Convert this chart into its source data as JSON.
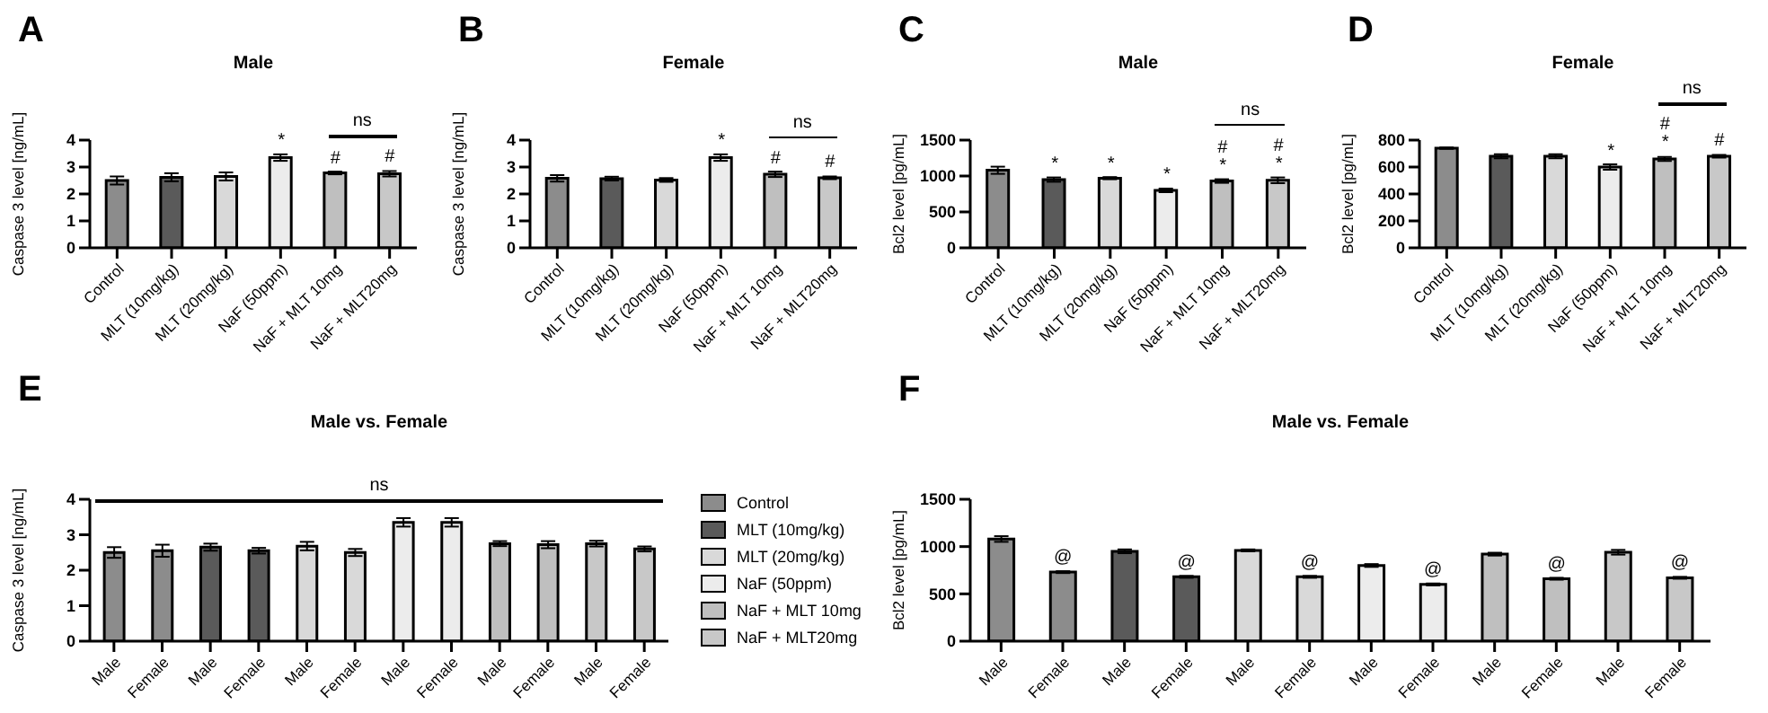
{
  "chart_data": [
    {
      "type": "bar",
      "title": "Male",
      "ylabel": "Caspase 3 level [ng/mL]",
      "categories": [
        "Control",
        "MLT (10mg/kg)",
        "MLT (20mg/kg)",
        "NaF (50ppm)",
        "NaF + MLT 10mg",
        "NaF + MLT20mg"
      ],
      "values": [
        2.5,
        2.62,
        2.65,
        3.35,
        2.78,
        2.75
      ],
      "errors": [
        0.15,
        0.15,
        0.15,
        0.12,
        0.05,
        0.1
      ],
      "colors": [
        "#8c8c8c",
        "#5a5a5a",
        "#d9d9d9",
        "#ececec",
        "#bfbfbf",
        "#c8c8c8"
      ],
      "value_labels": [
        null,
        null,
        null,
        "*",
        "#",
        "#"
      ],
      "ylim": [
        0,
        4
      ],
      "yticks": [
        0,
        1,
        2,
        3,
        4
      ],
      "annotations": [
        "A",
        "ns"
      ]
    },
    {
      "type": "bar",
      "title": "Female",
      "ylabel": "Caspase 3 level [ng/mL]",
      "categories": [
        "Control",
        "MLT (10mg/kg)",
        "MLT (20mg/kg)",
        "NaF (50ppm)",
        "NaF + MLT 10mg",
        "NaF + MLT20mg"
      ],
      "values": [
        2.58,
        2.57,
        2.52,
        3.35,
        2.73,
        2.6
      ],
      "errors": [
        0.12,
        0.07,
        0.07,
        0.12,
        0.1,
        0.05
      ],
      "colors": [
        "#8c8c8c",
        "#5a5a5a",
        "#d9d9d9",
        "#ececec",
        "#bfbfbf",
        "#c8c8c8"
      ],
      "value_labels": [
        null,
        null,
        null,
        "*",
        "#",
        "#"
      ],
      "ylim": [
        0,
        4
      ],
      "yticks": [
        0,
        1,
        2,
        3,
        4
      ],
      "annotations": [
        "B",
        "ns"
      ]
    },
    {
      "type": "bar",
      "title": "Male",
      "ylabel": "Bcl2 level [pg/mL]",
      "categories": [
        "Control",
        "MLT (10mg/kg)",
        "MLT (20mg/kg)",
        "NaF (50ppm)",
        "NaF + MLT 10mg",
        "NaF + MLT20mg"
      ],
      "values": [
        1080,
        950,
        970,
        800,
        930,
        940
      ],
      "errors": [
        50,
        30,
        15,
        25,
        25,
        40
      ],
      "colors": [
        "#8c8c8c",
        "#5a5a5a",
        "#d9d9d9",
        "#ececec",
        "#bfbfbf",
        "#c8c8c8"
      ],
      "value_labels": [
        null,
        "*",
        "*",
        "*",
        "#\n*",
        "#\n*"
      ],
      "ylim": [
        0,
        1500
      ],
      "yticks": [
        0,
        500,
        1000,
        1500
      ],
      "annotations": [
        "C",
        "ns"
      ]
    },
    {
      "type": "bar",
      "title": "Female",
      "ylabel": "Bcl2 level [pg/mL]",
      "categories": [
        "Control",
        "MLT (10mg/kg)",
        "MLT (20mg/kg)",
        "NaF (50ppm)",
        "NaF + MLT 10mg",
        "NaF + MLT20mg"
      ],
      "values": [
        740,
        680,
        680,
        600,
        660,
        680
      ],
      "errors": [
        5,
        15,
        15,
        20,
        15,
        10
      ],
      "colors": [
        "#8c8c8c",
        "#5a5a5a",
        "#d9d9d9",
        "#ececec",
        "#bfbfbf",
        "#c8c8c8"
      ],
      "value_labels": [
        null,
        null,
        null,
        "*",
        "#\n*",
        "#"
      ],
      "ylim": [
        0,
        800
      ],
      "yticks": [
        0,
        200,
        400,
        600,
        800
      ],
      "annotations": [
        "D",
        "ns"
      ]
    },
    {
      "type": "bar",
      "title": "Male vs. Female",
      "ylabel": "Caspase 3 level [ng/mL]",
      "categories": [
        "Male",
        "Female",
        "Male",
        "Female",
        "Male",
        "Female",
        "Male",
        "Female",
        "Male",
        "Female",
        "Male",
        "Female"
      ],
      "stacked": true,
      "legend": "right",
      "ylim": [
        0,
        4
      ],
      "yticks": [
        0,
        1,
        2,
        3,
        4
      ],
      "annotations": [
        "E",
        "ns"
      ],
      "series": [
        {
          "name": "Control",
          "color": "#8c8c8c",
          "values": [
            2.5,
            2.55,
            null,
            null,
            null,
            null,
            null,
            null,
            null,
            null,
            null,
            null
          ],
          "errors": [
            0.15,
            0.17,
            null,
            null,
            null,
            null,
            null,
            null,
            null,
            null,
            null,
            null
          ]
        },
        {
          "name": "MLT (10mg/kg)",
          "color": "#5a5a5a",
          "values": [
            null,
            null,
            2.65,
            2.55,
            null,
            null,
            null,
            null,
            null,
            null,
            null,
            null
          ],
          "errors": [
            null,
            null,
            0.1,
            0.08,
            null,
            null,
            null,
            null,
            null,
            null,
            null,
            null
          ]
        },
        {
          "name": "MLT (20mg/kg)",
          "color": "#d9d9d9",
          "values": [
            null,
            null,
            null,
            null,
            2.68,
            2.5,
            null,
            null,
            null,
            null,
            null,
            null
          ],
          "errors": [
            null,
            null,
            null,
            null,
            0.12,
            0.1,
            null,
            null,
            null,
            null,
            null,
            null
          ]
        },
        {
          "name": "NaF (50ppm)",
          "color": "#ececec",
          "values": [
            null,
            null,
            null,
            null,
            null,
            null,
            3.35,
            3.35,
            null,
            null,
            null,
            null
          ],
          "errors": [
            null,
            null,
            null,
            null,
            null,
            null,
            0.12,
            0.12,
            null,
            null,
            null,
            null
          ]
        },
        {
          "name": "NaF + MLT 10mg",
          "color": "#bfbfbf",
          "values": [
            null,
            null,
            null,
            null,
            null,
            null,
            null,
            null,
            2.75,
            2.72,
            null,
            null
          ],
          "errors": [
            null,
            null,
            null,
            null,
            null,
            null,
            null,
            null,
            0.07,
            0.1,
            null,
            null
          ]
        },
        {
          "name": "NaF + MLT20mg",
          "color": "#c8c8c8",
          "values": [
            null,
            null,
            null,
            null,
            null,
            null,
            null,
            null,
            null,
            null,
            2.75,
            2.6
          ],
          "errors": [
            null,
            null,
            null,
            null,
            null,
            null,
            null,
            null,
            null,
            null,
            0.08,
            0.07
          ]
        }
      ]
    },
    {
      "type": "bar",
      "title": "Male vs. Female",
      "ylabel": "Bcl2 level [pg/mL]",
      "categories": [
        "Male",
        "Female",
        "Male",
        "Female",
        "Male",
        "Female",
        "Male",
        "Female",
        "Male",
        "Female",
        "Male",
        "Female"
      ],
      "stacked": true,
      "ylim": [
        0,
        1500
      ],
      "yticks": [
        0,
        500,
        1000,
        1500
      ],
      "annotations": [
        "F"
      ],
      "series": [
        {
          "color": "#8c8c8c",
          "values": [
            1080,
            730,
            null,
            null,
            null,
            null,
            null,
            null,
            null,
            null,
            null,
            null
          ],
          "errors": [
            30,
            10,
            null,
            null,
            null,
            null,
            null,
            null,
            null,
            null,
            null,
            null
          ],
          "value_labels": [
            null,
            "@",
            null,
            null,
            null,
            null,
            null,
            null,
            null,
            null,
            null,
            null
          ]
        },
        {
          "color": "#5a5a5a",
          "values": [
            null,
            null,
            950,
            680,
            null,
            null,
            null,
            null,
            null,
            null,
            null,
            null
          ],
          "errors": [
            null,
            null,
            20,
            10,
            null,
            null,
            null,
            null,
            null,
            null,
            null,
            null
          ],
          "value_labels": [
            null,
            null,
            null,
            "@",
            null,
            null,
            null,
            null,
            null,
            null,
            null,
            null
          ]
        },
        {
          "color": "#d9d9d9",
          "values": [
            null,
            null,
            null,
            null,
            960,
            680,
            null,
            null,
            null,
            null,
            null,
            null
          ],
          "errors": [
            null,
            null,
            null,
            null,
            10,
            10,
            null,
            null,
            null,
            null,
            null,
            null
          ],
          "value_labels": [
            null,
            null,
            null,
            null,
            null,
            "@",
            null,
            null,
            null,
            null,
            null,
            null
          ]
        },
        {
          "color": "#ececec",
          "values": [
            null,
            null,
            null,
            null,
            null,
            null,
            800,
            600,
            null,
            null,
            null,
            null
          ],
          "errors": [
            null,
            null,
            null,
            null,
            null,
            null,
            15,
            10,
            null,
            null,
            null,
            null
          ],
          "value_labels": [
            null,
            null,
            null,
            null,
            null,
            null,
            null,
            "@",
            null,
            null,
            null,
            null
          ]
        },
        {
          "color": "#bfbfbf",
          "values": [
            null,
            null,
            null,
            null,
            null,
            null,
            null,
            null,
            920,
            660,
            null,
            null
          ],
          "errors": [
            null,
            null,
            null,
            null,
            null,
            null,
            null,
            null,
            15,
            10,
            null,
            null
          ],
          "value_labels": [
            null,
            null,
            null,
            null,
            null,
            null,
            null,
            null,
            null,
            "@",
            null,
            null
          ]
        },
        {
          "color": "#c8c8c8",
          "values": [
            null,
            null,
            null,
            null,
            null,
            null,
            null,
            null,
            null,
            null,
            940,
            670
          ],
          "errors": [
            null,
            null,
            null,
            null,
            null,
            null,
            null,
            null,
            null,
            null,
            25,
            10
          ],
          "value_labels": [
            null,
            null,
            null,
            null,
            null,
            null,
            null,
            null,
            null,
            null,
            null,
            "@"
          ]
        }
      ]
    }
  ]
}
